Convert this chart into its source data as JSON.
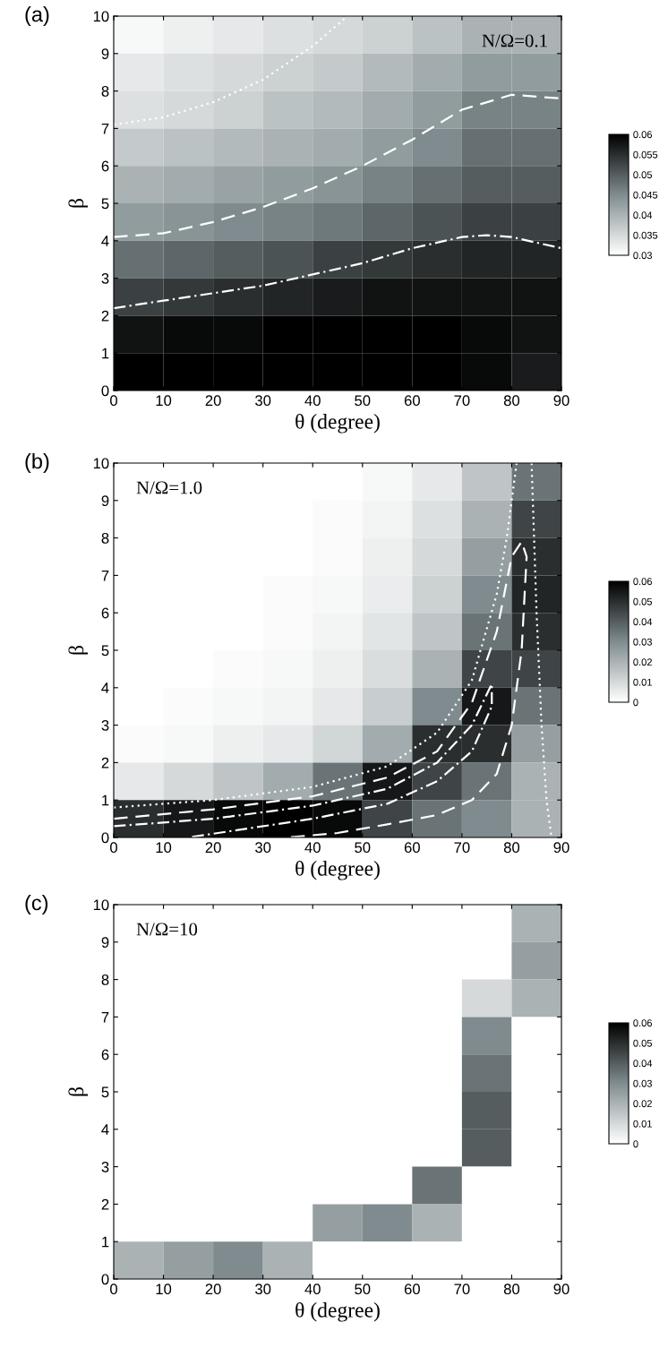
{
  "chart_data": [
    {
      "type": "heatmap",
      "xlabel": "θ (degree)",
      "ylabel": "β",
      "annotations": [
        "(a)",
        "N/Ω=0.1"
      ],
      "xlim": [
        0,
        90
      ],
      "xticks": [
        0,
        10,
        20,
        30,
        40,
        50,
        60,
        70,
        80,
        90
      ],
      "ylim": [
        0,
        10
      ],
      "yticks": [
        0,
        1,
        2,
        3,
        4,
        5,
        6,
        7,
        8,
        9,
        10
      ],
      "clim": [
        0.03,
        0.06
      ],
      "cticks": [
        0.03,
        0.035,
        0.04,
        0.045,
        0.05,
        0.055,
        0.06
      ],
      "cells": [
        [
          0.031,
          0.032,
          0.033,
          0.034,
          0.035,
          0.036,
          0.038,
          0.04,
          0.04
        ],
        [
          0.033,
          0.034,
          0.035,
          0.036,
          0.037,
          0.039,
          0.041,
          0.043,
          0.043
        ],
        [
          0.034,
          0.035,
          0.036,
          0.038,
          0.039,
          0.041,
          0.043,
          0.046,
          0.046
        ],
        [
          0.037,
          0.038,
          0.039,
          0.04,
          0.041,
          0.043,
          0.045,
          0.048,
          0.048
        ],
        [
          0.04,
          0.041,
          0.042,
          0.043,
          0.044,
          0.046,
          0.048,
          0.05,
          0.05
        ],
        [
          0.043,
          0.044,
          0.045,
          0.046,
          0.047,
          0.049,
          0.051,
          0.053,
          0.053
        ],
        [
          0.048,
          0.049,
          0.05,
          0.051,
          0.053,
          0.054,
          0.055,
          0.056,
          0.056
        ],
        [
          0.053,
          0.054,
          0.055,
          0.056,
          0.057,
          0.058,
          0.058,
          0.058,
          0.058
        ],
        [
          0.058,
          0.059,
          0.059,
          0.06,
          0.06,
          0.06,
          0.06,
          0.059,
          0.058
        ],
        [
          0.06,
          0.06,
          0.06,
          0.06,
          0.06,
          0.06,
          0.06,
          0.059,
          0.057
        ]
      ],
      "series": [
        {
          "type": "line",
          "color": "#ffffff",
          "line_style": "dotted",
          "x": [
            0,
            10,
            20,
            30,
            40,
            47
          ],
          "values": [
            7.1,
            7.3,
            7.7,
            8.3,
            9.2,
            10
          ]
        },
        {
          "type": "line",
          "color": "#ffffff",
          "line_style": "dashed",
          "x": [
            0,
            10,
            20,
            30,
            40,
            50,
            60,
            70,
            80,
            90
          ],
          "values": [
            4.1,
            4.2,
            4.5,
            4.9,
            5.4,
            6.0,
            6.7,
            7.5,
            7.9,
            7.8
          ]
        },
        {
          "type": "line",
          "color": "#ffffff",
          "line_style": "dashdot",
          "x": [
            0,
            10,
            20,
            30,
            40,
            50,
            60,
            70,
            75,
            80,
            90
          ],
          "values": [
            2.2,
            2.4,
            2.6,
            2.8,
            3.1,
            3.4,
            3.8,
            4.1,
            4.15,
            4.1,
            3.8
          ]
        }
      ]
    },
    {
      "type": "heatmap",
      "xlabel": "θ (degree)",
      "ylabel": "β",
      "annotations": [
        "(b)",
        "N/Ω=1.0"
      ],
      "xlim": [
        0,
        90
      ],
      "xticks": [
        0,
        10,
        20,
        30,
        40,
        50,
        60,
        70,
        80,
        90
      ],
      "ylim": [
        0,
        10
      ],
      "yticks": [
        0,
        1,
        2,
        3,
        4,
        5,
        6,
        7,
        8,
        9,
        10
      ],
      "clim": [
        0,
        0.06
      ],
      "cticks": [
        0,
        0.01,
        0.02,
        0.03,
        0.04,
        0.05,
        0.06
      ],
      "cells": [
        [
          0,
          0,
          0,
          0,
          0,
          0.002,
          0.006,
          0.015,
          0.035
        ],
        [
          0,
          0,
          0,
          0,
          0.001,
          0.003,
          0.008,
          0.02,
          0.045
        ],
        [
          0,
          0,
          0,
          0,
          0.001,
          0.004,
          0.01,
          0.025,
          0.05
        ],
        [
          0,
          0,
          0,
          0.001,
          0.002,
          0.005,
          0.012,
          0.03,
          0.052
        ],
        [
          0,
          0,
          0,
          0.001,
          0.003,
          0.007,
          0.015,
          0.035,
          0.05
        ],
        [
          0,
          0,
          0.001,
          0.002,
          0.004,
          0.009,
          0.02,
          0.045,
          0.045
        ],
        [
          0,
          0.001,
          0.002,
          0.003,
          0.006,
          0.013,
          0.03,
          0.055,
          0.035
        ],
        [
          0.001,
          0.002,
          0.004,
          0.006,
          0.011,
          0.022,
          0.05,
          0.05,
          0.025
        ],
        [
          0.006,
          0.01,
          0.015,
          0.022,
          0.035,
          0.055,
          0.045,
          0.035,
          0.02
        ],
        [
          0.05,
          0.055,
          0.058,
          0.06,
          0.058,
          0.045,
          0.035,
          0.03,
          0.02
        ]
      ],
      "series": [
        {
          "type": "line",
          "color": "#ffffff",
          "line_style": "dotted",
          "x": [
            0,
            20,
            40,
            55,
            65,
            72,
            77,
            79,
            81
          ],
          "values": [
            0.8,
            1.0,
            1.35,
            1.9,
            2.8,
            4.2,
            6.5,
            8,
            10
          ]
        },
        {
          "type": "line",
          "color": "#ffffff",
          "line_style": "dotted",
          "x": [
            84,
            85,
            86,
            87,
            88
          ],
          "values": [
            10,
            6,
            3,
            1,
            0
          ]
        },
        {
          "type": "line",
          "color": "#ffffff",
          "line_style": "dashed",
          "x": [
            0,
            20,
            40,
            55,
            65,
            72,
            77,
            80,
            82,
            83,
            82,
            80,
            77,
            72,
            65,
            55,
            45,
            35
          ],
          "values": [
            0.5,
            0.75,
            1.1,
            1.6,
            2.3,
            3.6,
            5.5,
            7.5,
            7.9,
            7.5,
            5,
            3,
            1.7,
            1.0,
            0.6,
            0.35,
            0.12,
            0
          ]
        },
        {
          "type": "line",
          "color": "#ffffff",
          "line_style": "dashdot",
          "x": [
            0,
            20,
            40,
            55,
            65,
            72,
            76,
            76,
            72,
            65,
            55,
            40,
            25,
            15
          ],
          "values": [
            0.3,
            0.5,
            0.85,
            1.3,
            2,
            3,
            4.1,
            3.5,
            2.3,
            1.5,
            0.9,
            0.5,
            0.2,
            0
          ]
        }
      ]
    },
    {
      "type": "heatmap",
      "xlabel": "θ (degree)",
      "ylabel": "β",
      "annotations": [
        "(c)",
        "N/Ω=10"
      ],
      "xlim": [
        0,
        90
      ],
      "xticks": [
        0,
        10,
        20,
        30,
        40,
        50,
        60,
        70,
        80,
        90
      ],
      "ylim": [
        0,
        10
      ],
      "yticks": [
        0,
        1,
        2,
        3,
        4,
        5,
        6,
        7,
        8,
        9,
        10
      ],
      "clim": [
        0,
        0.06
      ],
      "cticks": [
        0,
        0.01,
        0.02,
        0.03,
        0.04,
        0.05,
        0.06
      ],
      "cells": [
        [
          0,
          0,
          0,
          0,
          0,
          0,
          0,
          0,
          0.02
        ],
        [
          0,
          0,
          0,
          0,
          0,
          0,
          0,
          0,
          0.025
        ],
        [
          0,
          0,
          0,
          0,
          0,
          0,
          0,
          0.01,
          0.02
        ],
        [
          0,
          0,
          0,
          0,
          0,
          0,
          0,
          0.03,
          0
        ],
        [
          0,
          0,
          0,
          0,
          0,
          0,
          0,
          0.035,
          0
        ],
        [
          0,
          0,
          0,
          0,
          0,
          0,
          0,
          0.04,
          0
        ],
        [
          0,
          0,
          0,
          0,
          0,
          0,
          0,
          0.04,
          0
        ],
        [
          0,
          0,
          0,
          0,
          0,
          0,
          0.035,
          0,
          0
        ],
        [
          0,
          0,
          0,
          0,
          0.025,
          0.03,
          0.02,
          0,
          0
        ],
        [
          0.02,
          0.025,
          0.03,
          0.02,
          0,
          0,
          0,
          0,
          0
        ]
      ]
    }
  ]
}
